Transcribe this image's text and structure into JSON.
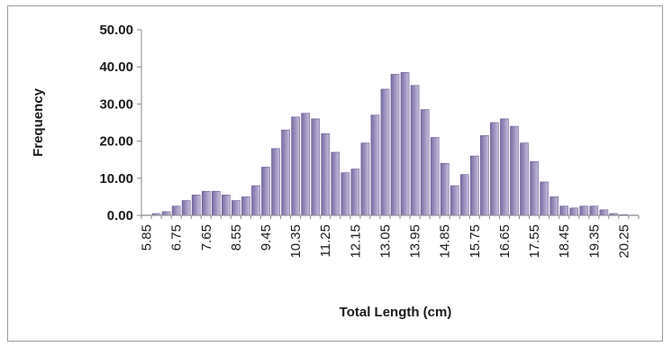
{
  "chart_data": {
    "type": "bar",
    "title": "",
    "xlabel": "Total Length (cm)",
    "ylabel": "Frequency",
    "ylim": [
      0,
      50
    ],
    "yticks": [
      "0.00",
      "10.00",
      "20.00",
      "30.00",
      "40.00",
      "50.00"
    ],
    "ytick_values": [
      0,
      10,
      20,
      30,
      40,
      50
    ],
    "grid": false,
    "legend": "none",
    "bar_color": "#9b8fbd",
    "bar_edge_color": "#6a5c92",
    "x": [
      5.85,
      6.15,
      6.45,
      6.75,
      7.05,
      7.35,
      7.65,
      7.95,
      8.25,
      8.55,
      8.85,
      9.15,
      9.45,
      9.75,
      10.05,
      10.35,
      10.65,
      10.95,
      11.25,
      11.55,
      11.85,
      12.15,
      12.45,
      12.75,
      13.05,
      13.35,
      13.65,
      13.95,
      14.25,
      14.55,
      14.85,
      15.15,
      15.45,
      15.75,
      16.05,
      16.35,
      16.65,
      16.95,
      17.25,
      17.55,
      17.85,
      18.15,
      18.45,
      18.75,
      19.05,
      19.35,
      19.65,
      19.95,
      20.25,
      20.55
    ],
    "values": [
      0.1,
      0.5,
      1.0,
      2.5,
      4.0,
      5.5,
      6.5,
      6.5,
      5.5,
      4.0,
      5.0,
      8.0,
      13.0,
      18.0,
      23.0,
      26.5,
      27.5,
      26.0,
      22.0,
      17.0,
      11.5,
      12.5,
      19.5,
      27.0,
      34.0,
      38.0,
      38.5,
      35.0,
      28.5,
      21.0,
      14.0,
      8.0,
      11.0,
      16.0,
      21.5,
      25.0,
      26.0,
      24.0,
      19.5,
      14.5,
      9.0,
      5.0,
      2.5,
      2.0,
      2.5,
      2.5,
      1.5,
      0.5,
      0.2,
      0.1
    ],
    "xtick_labels": [
      "5.85",
      "6.75",
      "7.65",
      "8.55",
      "9.45",
      "10.35",
      "11.25",
      "12.15",
      "13.05",
      "13.95",
      "14.85",
      "15.75",
      "16.65",
      "17.55",
      "18.45",
      "19.35",
      "20.25"
    ],
    "xtick_values": [
      5.85,
      6.75,
      7.65,
      8.55,
      9.45,
      10.35,
      11.25,
      12.15,
      13.05,
      13.95,
      14.85,
      15.75,
      16.65,
      17.55,
      18.45,
      19.35,
      20.25
    ]
  }
}
